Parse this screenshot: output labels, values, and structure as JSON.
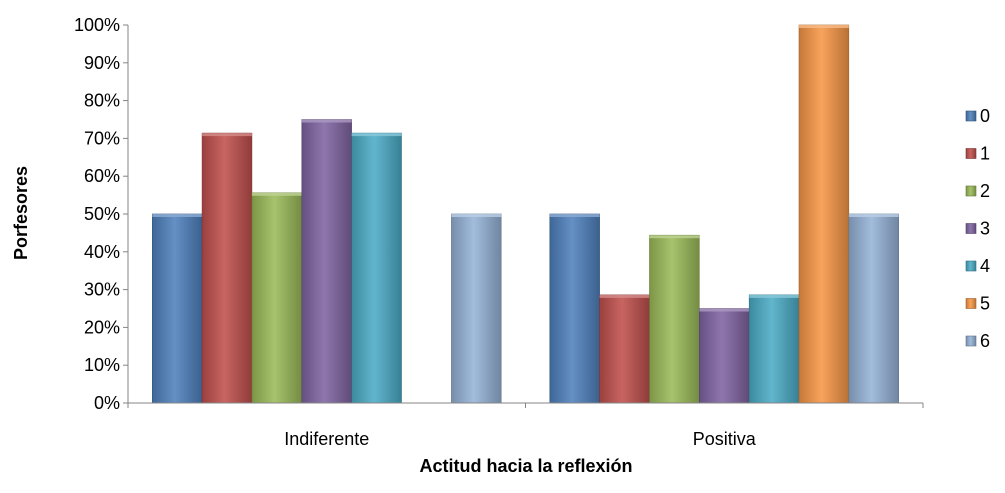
{
  "chart_data": {
    "type": "bar",
    "title": "",
    "xlabel": "Actitud hacia la reflexión",
    "ylabel": "Porfesores",
    "ylim": [
      0,
      100
    ],
    "y_ticks": [
      "0%",
      "10%",
      "20%",
      "30%",
      "40%",
      "50%",
      "60%",
      "70%",
      "80%",
      "90%",
      "100%"
    ],
    "y_tick_values": [
      0,
      10,
      20,
      30,
      40,
      50,
      60,
      70,
      80,
      90,
      100
    ],
    "categories": [
      "Indiferente",
      "Positiva"
    ],
    "legend_position": "right",
    "grid": false,
    "series": [
      {
        "name": "0",
        "color": "#4F81BD",
        "values": [
          50,
          50
        ]
      },
      {
        "name": "1",
        "color": "#C0504D",
        "values": [
          71.4,
          28.6
        ]
      },
      {
        "name": "2",
        "color": "#9BBB59",
        "values": [
          55.6,
          44.4
        ]
      },
      {
        "name": "3",
        "color": "#8064A2",
        "values": [
          75,
          25
        ]
      },
      {
        "name": "4",
        "color": "#4BACC6",
        "values": [
          71.4,
          28.6
        ]
      },
      {
        "name": "5",
        "color": "#F79646",
        "values": [
          0,
          100
        ]
      },
      {
        "name": "6",
        "color": "#95B3D7",
        "values": [
          50,
          50
        ]
      }
    ]
  }
}
